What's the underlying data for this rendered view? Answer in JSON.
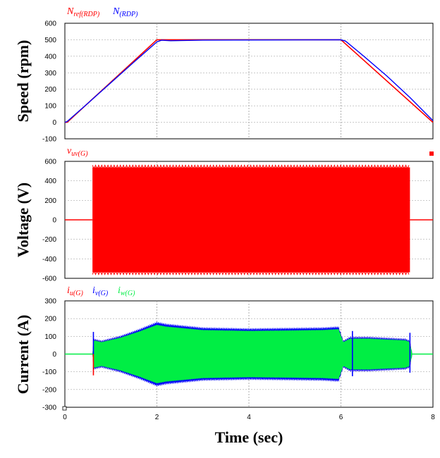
{
  "chart_data": [
    {
      "type": "line",
      "ylabel": "Speed (rpm)",
      "xlim": [
        0,
        8
      ],
      "ylim": [
        -100,
        600
      ],
      "yticks": [
        -100,
        0,
        100,
        200,
        300,
        400,
        500,
        600
      ],
      "grid": true,
      "legend_position": "top-left, above plot",
      "series": [
        {
          "name": "Nref(RDP)",
          "label_main": "N",
          "label_sub": "ref(RDP)",
          "color": "#ff0000",
          "x": [
            0,
            0.05,
            2,
            6,
            8
          ],
          "y": [
            0,
            0,
            500,
            500,
            0
          ]
        },
        {
          "name": "N(RDP)",
          "label_main": "N",
          "label_sub": "(RDP)",
          "color": "#0000ff",
          "x": [
            0,
            0.05,
            0.5,
            1,
            1.5,
            2,
            2.1,
            2.3,
            2.6,
            3,
            6,
            6.1,
            6.5,
            7,
            7.5,
            8
          ],
          "y": [
            0,
            5,
            115,
            240,
            365,
            487,
            497,
            494,
            496,
            498,
            500,
            492,
            400,
            280,
            150,
            10
          ]
        }
      ]
    },
    {
      "type": "line",
      "ylabel": "Voltage (V)",
      "xlim": [
        0,
        8
      ],
      "ylim": [
        -600,
        600
      ],
      "yticks": [
        -600,
        -400,
        -200,
        0,
        200,
        400,
        600
      ],
      "grid": true,
      "legend_position": "top-left, above plot",
      "series": [
        {
          "name": "vuv(G)",
          "label_main": "v",
          "label_sub": "uv(G)",
          "color": "#ff0000",
          "envelope_x": [
            0,
            0.6,
            0.6,
            7.5,
            7.5,
            8
          ],
          "envelope_max": [
            0,
            0,
            560,
            560,
            0,
            0
          ],
          "envelope_min": [
            0,
            0,
            -560,
            -560,
            0,
            0
          ]
        }
      ]
    },
    {
      "type": "line",
      "ylabel": "Current (A)",
      "xlabel": "Time (sec)",
      "xlim": [
        0,
        8
      ],
      "xticks": [
        0,
        2,
        4,
        6,
        8
      ],
      "ylim": [
        -300,
        300
      ],
      "yticks": [
        -300,
        -200,
        -100,
        0,
        100,
        200,
        300
      ],
      "grid": true,
      "legend_position": "top-left, above plot",
      "series": [
        {
          "name": "iu(G)",
          "label_main": "i",
          "label_sub": "u(G)",
          "color": "#ff0000"
        },
        {
          "name": "iv(G)",
          "label_main": "i",
          "label_sub": "v(G)",
          "color": "#0000ff"
        },
        {
          "name": "iw(G)",
          "label_main": "i",
          "label_sub": "w(G)",
          "color": "#00ee44"
        }
      ],
      "envelope_x": [
        0,
        0.6,
        0.62,
        0.8,
        1.2,
        1.6,
        1.9,
        2.0,
        2.2,
        2.6,
        3,
        4,
        5,
        5.6,
        5.95,
        6.05,
        6.2,
        6.6,
        7,
        7.4,
        7.5,
        7.55,
        8
      ],
      "envelope_amp": [
        0,
        0,
        80,
        70,
        95,
        130,
        160,
        170,
        160,
        150,
        140,
        135,
        138,
        140,
        145,
        70,
        90,
        90,
        85,
        80,
        70,
        0,
        0
      ],
      "spikes": [
        {
          "x": 0.62,
          "y": 125,
          "color": "#0000ff"
        },
        {
          "x": 0.62,
          "y": -120,
          "color": "#ff0000"
        },
        {
          "x": 6.25,
          "y": 130,
          "color": "#0000ff"
        },
        {
          "x": 6.25,
          "y": -125,
          "color": "#0000ff"
        },
        {
          "x": 7.5,
          "y": 120,
          "color": "#0000ff"
        },
        {
          "x": 7.5,
          "y": -105,
          "color": "#0000ff"
        }
      ]
    }
  ]
}
